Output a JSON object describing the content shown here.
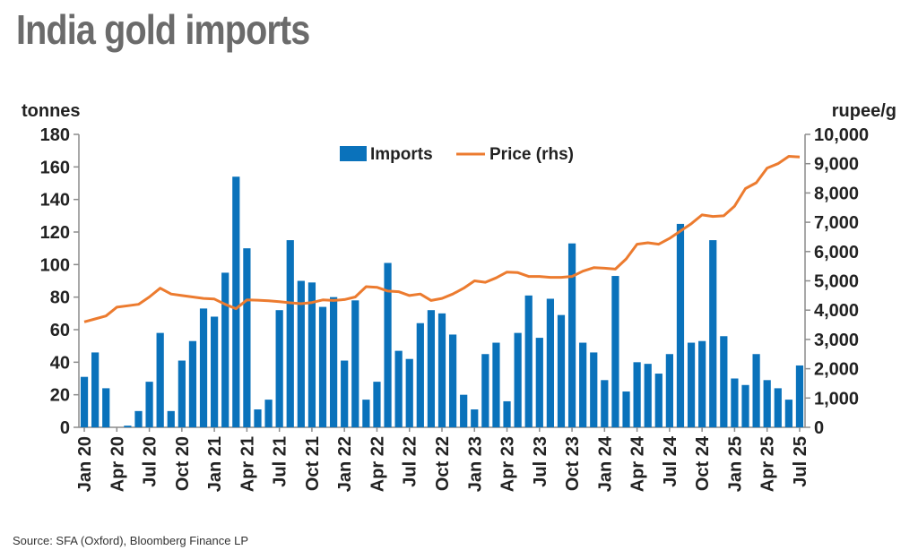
{
  "header": {
    "title": "India gold imports"
  },
  "footer": {
    "source": "Source: SFA (Oxford), Bloomberg Finance LP"
  },
  "chart_data": {
    "type": "bar",
    "title": "India gold imports",
    "ylabel_left": "tonnes",
    "ylabel_right": "rupee/g",
    "ylim_left": [
      0,
      180
    ],
    "ylim_right": [
      0,
      10000
    ],
    "yticks_left": [
      "0",
      "20",
      "40",
      "60",
      "80",
      "100",
      "120",
      "140",
      "160",
      "180"
    ],
    "yticks_right": [
      "0",
      "1,000",
      "2,000",
      "3,000",
      "4,000",
      "5,000",
      "6,000",
      "7,000",
      "8,000",
      "9,000",
      "10,000"
    ],
    "x_tick_labels": [
      "Jan 20",
      "Apr 20",
      "Jul 20",
      "Oct 20",
      "Jan 21",
      "Apr 21",
      "Jul 21",
      "Oct 21",
      "Jan 22",
      "Apr 22",
      "Jul 22",
      "Oct 22",
      "Jan 23",
      "Apr 23",
      "Jul 23",
      "Oct 23",
      "Jan 24",
      "Apr 24",
      "Jul 24",
      "Oct 24",
      "Jan 25",
      "Apr 25",
      "Jul 25"
    ],
    "legend_position": "top-center",
    "grid": false,
    "colors": {
      "imports": "#0a72bb",
      "price": "#ec7b2f"
    },
    "categories": [
      "2020-01",
      "2020-02",
      "2020-03",
      "2020-04",
      "2020-05",
      "2020-06",
      "2020-07",
      "2020-08",
      "2020-09",
      "2020-10",
      "2020-11",
      "2020-12",
      "2021-01",
      "2021-02",
      "2021-03",
      "2021-04",
      "2021-05",
      "2021-06",
      "2021-07",
      "2021-08",
      "2021-09",
      "2021-10",
      "2021-11",
      "2021-12",
      "2022-01",
      "2022-02",
      "2022-03",
      "2022-04",
      "2022-05",
      "2022-06",
      "2022-07",
      "2022-08",
      "2022-09",
      "2022-10",
      "2022-11",
      "2022-12",
      "2023-01",
      "2023-02",
      "2023-03",
      "2023-04",
      "2023-05",
      "2023-06",
      "2023-07",
      "2023-08",
      "2023-09",
      "2023-10",
      "2023-11",
      "2023-12",
      "2024-01",
      "2024-02",
      "2024-03",
      "2024-04",
      "2024-05",
      "2024-06",
      "2024-07",
      "2024-08",
      "2024-09",
      "2024-10",
      "2024-11",
      "2024-12",
      "2025-01",
      "2025-02",
      "2025-03",
      "2025-04",
      "2025-05",
      "2025-06",
      "2025-07"
    ],
    "series": [
      {
        "name": "Imports",
        "type": "bar",
        "axis": "left",
        "values": [
          31,
          46,
          24,
          0,
          1,
          10,
          28,
          58,
          10,
          41,
          53,
          73,
          68,
          95,
          154,
          110,
          11,
          17,
          72,
          115,
          90,
          89,
          74,
          80,
          41,
          78,
          17,
          28,
          101,
          47,
          42,
          64,
          72,
          70,
          57,
          20,
          11,
          45,
          52,
          16,
          58,
          81,
          55,
          79,
          69,
          113,
          52,
          46,
          29,
          93,
          22,
          40,
          39,
          33,
          45,
          125,
          52,
          53,
          115,
          56,
          30,
          26,
          45,
          29,
          24,
          17,
          38
        ]
      },
      {
        "name": "Price (rhs)",
        "type": "line",
        "axis": "right",
        "values": [
          3600,
          3700,
          3800,
          4100,
          4150,
          4200,
          4450,
          4750,
          4550,
          4500,
          4450,
          4400,
          4380,
          4200,
          4050,
          4350,
          4340,
          4320,
          4290,
          4250,
          4220,
          4260,
          4350,
          4330,
          4360,
          4450,
          4800,
          4780,
          4650,
          4630,
          4500,
          4550,
          4330,
          4400,
          4550,
          4750,
          5000,
          4950,
          5100,
          5300,
          5280,
          5150,
          5150,
          5120,
          5120,
          5150,
          5330,
          5450,
          5430,
          5400,
          5750,
          6250,
          6300,
          6250,
          6450,
          6700,
          6950,
          7250,
          7200,
          7220,
          7550,
          8150,
          8350,
          8850,
          9000,
          9250,
          9230
        ]
      }
    ]
  }
}
